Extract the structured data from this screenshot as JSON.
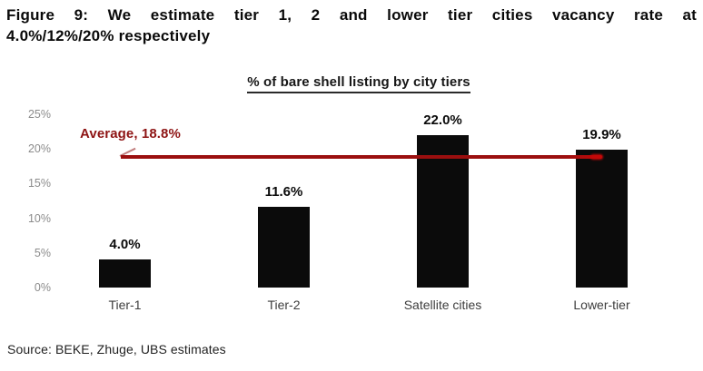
{
  "figure": {
    "title_line1": "Figure 9: We estimate tier 1, 2 and lower tier cities vacancy rate at",
    "title_line2": "4.0%/12%/20% respectively",
    "source": "Source: BEKE, Zhuge, UBS estimates"
  },
  "chart_data": {
    "type": "bar",
    "title": "% of bare shell listing by city tiers",
    "categories": [
      "Tier-1",
      "Tier-2",
      "Satellite cities",
      "Lower-tier"
    ],
    "values": [
      4.0,
      11.6,
      22.0,
      19.9
    ],
    "value_labels": [
      "4.0%",
      "11.6%",
      "22.0%",
      "19.9%"
    ],
    "xlabel": "",
    "ylabel": "",
    "ylim": [
      0,
      25
    ],
    "yticks": [
      0,
      5,
      10,
      15,
      20,
      25
    ],
    "ytick_labels": [
      "0%",
      "5%",
      "10%",
      "15%",
      "20%",
      "25%"
    ],
    "grid": false,
    "legend": "none",
    "annotation": {
      "label": "Average, 18.8%",
      "value": 18.8
    },
    "colors": {
      "bar": "#0b0b0b",
      "average_line": "#9b0f0f",
      "average_line_end": "#c40808",
      "average_text": "#8e1414",
      "tick_text": "#8c8c8c",
      "category_text": "#3d3d3d"
    }
  }
}
